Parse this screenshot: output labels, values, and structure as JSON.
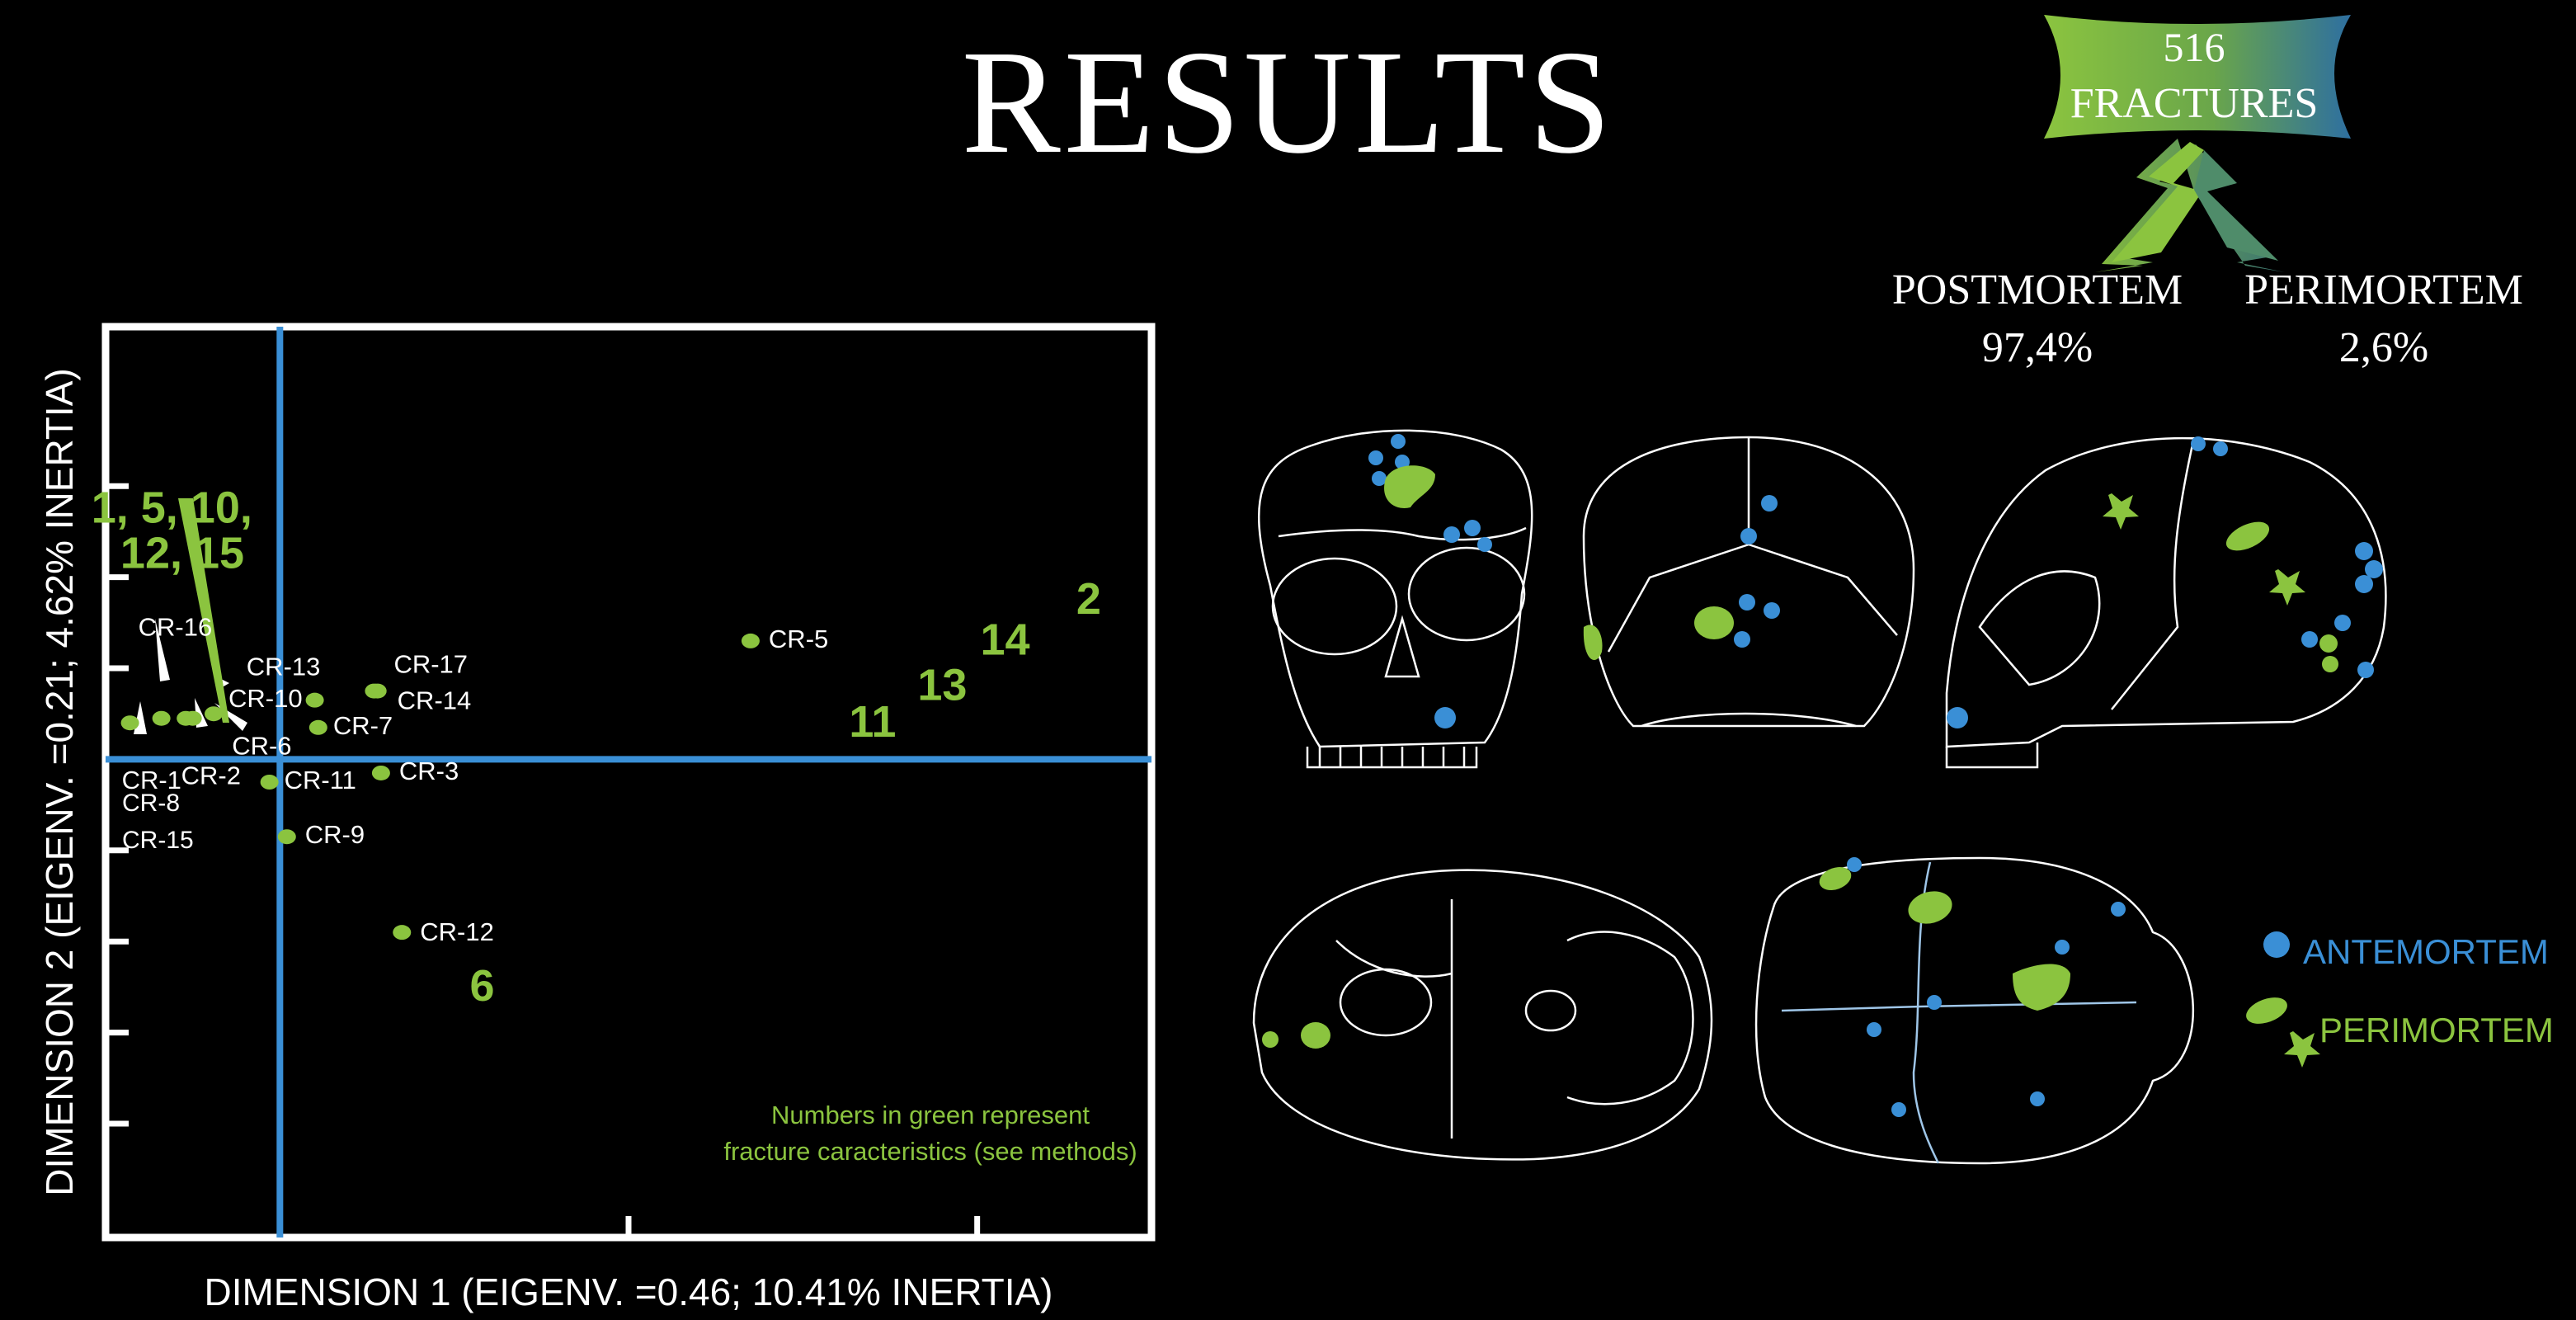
{
  "title": "RESULTS",
  "fractures": {
    "total_number": "516",
    "total_label": "FRACTURES",
    "postmortem_label": "POSTMORTEM",
    "postmortem_pct": "97,4%",
    "perimortem_label": "PERIMORTEM",
    "perimortem_pct": "2,6%"
  },
  "legend": {
    "antemortem": "ANTEMORTEM",
    "perimortem": "PERIMORTEM"
  },
  "colors": {
    "green": "#8bc43f",
    "blue": "#3a8fd6",
    "frame": "#ffffff"
  },
  "chart_data": {
    "type": "scatter",
    "title": "",
    "xlabel": "DIMENSION 1 (EIGENV. =0.46; 10.41% INERTIA)",
    "ylabel": "DIMENSION 2 (EIGENV. =0.21; 4.62% INERTIA)",
    "xlim": [
      -0.5,
      2.5
    ],
    "ylim": [
      -1.05,
      0.95
    ],
    "origin_lines": {
      "x": 0,
      "y": 0
    },
    "x_ticks": [
      1,
      2
    ],
    "y_ticks": [
      -0.8,
      -0.6,
      -0.4,
      -0.2,
      0.2,
      0.4,
      0.6
    ],
    "note": "Numbers in green represent fracture caracteristics (see methods)",
    "points": [
      {
        "label": "CR-1",
        "x": -0.43,
        "y": 0.08
      },
      {
        "label": "CR-16",
        "x": -0.34,
        "y": 0.09
      },
      {
        "label": "CR-2",
        "x": -0.25,
        "y": 0.09
      },
      {
        "label": "CR-6",
        "x": -0.27,
        "y": 0.09
      },
      {
        "label": "CR-10",
        "x": -0.19,
        "y": 0.1
      },
      {
        "label": "CR-13",
        "x": 0.1,
        "y": 0.13
      },
      {
        "label": "CR-17",
        "x": 0.27,
        "y": 0.15
      },
      {
        "label": "CR-14",
        "x": 0.28,
        "y": 0.15
      },
      {
        "label": "CR-7",
        "x": 0.11,
        "y": 0.07
      },
      {
        "label": "CR-5",
        "x": 1.35,
        "y": 0.26
      },
      {
        "label": "CR-11",
        "x": -0.03,
        "y": -0.05
      },
      {
        "label": "CR-3",
        "x": 0.29,
        "y": -0.03
      },
      {
        "label": "CR-9",
        "x": 0.02,
        "y": -0.17
      },
      {
        "label": "CR-12",
        "x": 0.35,
        "y": -0.38
      }
    ],
    "point_extra_labels": [
      "CR-8",
      "CR-15"
    ],
    "green_labels": [
      {
        "label": "1, 5, 10,",
        "x": -0.31,
        "y": 0.52
      },
      {
        "label": "12, 15",
        "x": -0.28,
        "y": 0.42
      },
      {
        "label": "2",
        "x": 2.32,
        "y": 0.32
      },
      {
        "label": "14",
        "x": 2.08,
        "y": 0.23
      },
      {
        "label": "13",
        "x": 1.9,
        "y": 0.13
      },
      {
        "label": "11",
        "x": 1.7,
        "y": 0.05
      },
      {
        "label": "6",
        "x": 0.58,
        "y": -0.53
      }
    ]
  }
}
